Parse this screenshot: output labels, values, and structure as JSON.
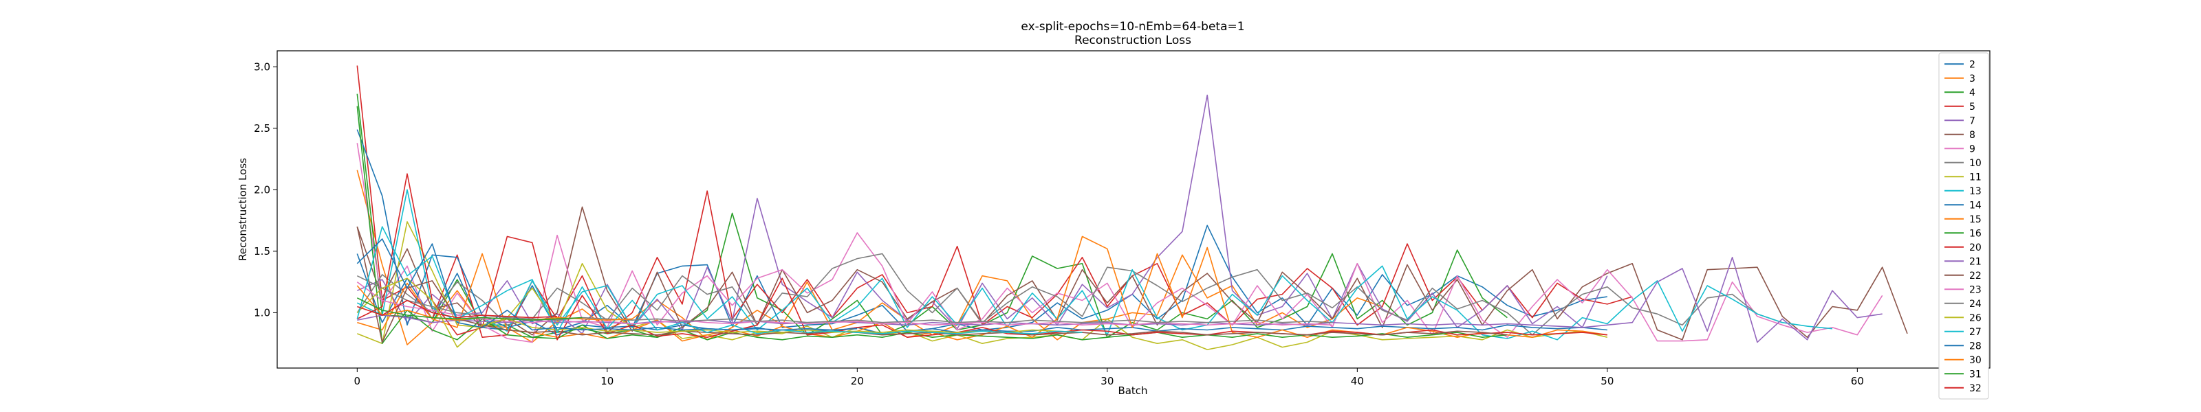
{
  "chart_data": {
    "type": "line",
    "title": "ex-split-epochs=10-nEmb=64-beta=1",
    "subtitle": "Reconstruction Loss",
    "xlabel": "Batch",
    "ylabel": "Reconstruction Loss",
    "xlim": [
      -3.2,
      65.3
    ],
    "ylim": [
      0.55,
      3.13
    ],
    "xticks": [
      0,
      10,
      20,
      30,
      40,
      50,
      60
    ],
    "yticks": [
      1.0,
      1.5,
      2.0,
      2.5,
      3.0
    ],
    "ytick_labels": [
      "1.0",
      "1.5",
      "2.0",
      "2.5",
      "3.0"
    ],
    "grid": false,
    "legend_position": "right",
    "series": [
      {
        "name": "2",
        "color": "#1f77b4",
        "values": [
          1.48,
          0.92,
          1.28,
          0.95,
          1.32,
          0.88,
          0.86,
          1.22,
          0.86,
          0.92,
          1.06,
          0.88,
          1.32,
          1.38,
          1.39,
          0.89,
          1.3,
          0.88,
          0.9,
          0.91,
          0.98,
          1.06,
          0.85,
          0.87,
          0.91,
          0.86,
          0.88,
          0.92,
          1.08,
          0.95,
          1.02,
          1.15,
          0.95,
          1.1,
          1.71,
          1.29,
          1.0,
          1.12,
          0.9,
          1.2,
          0.98,
          1.31,
          1.06,
          1.15,
          1.3,
          1.21,
          1.06,
          0.97,
          1.02,
          1.1,
          1.13
        ]
      },
      {
        "name": "3",
        "color": "#ff7f0e",
        "values": [
          2.16,
          1.39,
          0.74,
          0.92,
          1.18,
          0.9,
          0.88,
          0.76,
          0.93,
          1.03,
          0.87,
          0.95,
          1.1,
          0.96,
          0.78,
          0.88,
          1.02,
          0.9,
          1.25,
          0.86,
          0.92,
          1.08,
          0.94,
          0.82,
          0.9,
          1.3,
          1.26,
          0.95,
          0.78,
          0.92,
          0.95,
          1.0,
          0.98,
          1.47,
          1.12,
          1.22,
          0.9,
          1.0,
          0.88,
          0.95,
          1.12,
          1.05
        ]
      },
      {
        "name": "4",
        "color": "#2ca02c",
        "values": [
          2.78,
          0.98,
          0.97,
          0.92,
          1.27,
          0.9,
          0.9,
          0.8,
          0.84,
          0.87,
          0.83,
          0.86,
          0.8,
          0.88,
          1.02,
          1.81,
          1.12,
          1.02,
          0.82,
          0.95,
          1.1,
          0.82,
          0.9,
          1.05,
          0.86,
          0.9,
          1.0,
          1.46,
          1.36,
          1.4,
          0.8,
          0.92,
          0.86,
          1.0,
          0.95,
          1.1,
          0.88,
          0.95,
          1.05,
          1.48,
          0.95,
          1.1,
          0.9,
          1.0,
          1.51,
          1.12,
          0.96
        ]
      },
      {
        "name": "5",
        "color": "#d62728",
        "values": [
          3.01,
          1.1,
          1.21,
          0.95,
          1.47,
          0.8,
          0.82,
          1.26,
          0.95,
          1.3,
          0.84,
          1.0,
          1.45,
          1.07,
          1.99,
          0.95,
          1.23,
          1.0,
          1.27,
          0.96,
          1.2,
          1.31,
          1.0,
          1.05,
          1.54,
          0.9,
          1.05,
          0.96,
          1.15,
          1.45,
          1.05,
          1.3,
          1.4,
          0.98,
          1.08,
          0.9,
          1.11,
          1.15,
          1.36,
          1.2,
          0.9,
          1.05,
          1.56,
          1.1,
          1.29,
          1.02,
          1.22,
          0.96,
          1.24,
          1.11,
          1.07,
          1.13
        ]
      },
      {
        "name": "7",
        "color": "#9467bd",
        "values": [
          1.18,
          1.27,
          0.92,
          1.15,
          0.98,
          1.0,
          1.26,
          0.91,
          0.99,
          0.83,
          1.23,
          0.88,
          1.11,
          0.86,
          1.37,
          0.93,
          1.93,
          1.23,
          1.09,
          0.96,
          1.33,
          1.1,
          0.94,
          1.09,
          0.87,
          1.24,
          0.95,
          1.12,
          0.9,
          1.23,
          1.04,
          1.15,
          1.45,
          1.66,
          2.77,
          1.18,
          0.98,
          1.05,
          1.32,
          0.95,
          1.4,
          1.03,
          0.93,
          1.16,
          0.88,
          1.02,
          1.22,
          0.91,
          1.05,
          0.88,
          1.3
        ]
      },
      {
        "name": "8",
        "color": "#8c564b",
        "values": [
          1.7,
          1.12,
          1.52,
          1.03,
          1.08,
          0.88,
          0.95,
          0.82,
          1.0,
          1.86,
          1.18,
          0.85,
          1.33,
          0.88,
          1.04,
          1.33,
          0.9,
          1.35,
          1.0,
          1.1,
          1.35,
          1.25,
          0.95,
          1.09,
          1.2,
          0.91,
          1.14,
          1.26,
          0.94,
          1.35,
          1.08,
          1.3,
          0.9,
          1.17,
          1.32,
          1.09,
          0.92,
          1.33,
          1.15,
          0.95,
          1.28,
          0.88,
          1.39,
          1.02,
          1.27,
          0.9,
          1.18,
          1.35,
          0.95,
          1.21,
          1.32,
          1.4,
          0.86,
          0.78,
          1.35,
          1.36,
          1.37,
          0.97,
          0.8,
          1.05,
          1.02,
          1.37,
          0.83
        ]
      },
      {
        "name": "9",
        "color": "#e377c2",
        "values": [
          2.38,
          1.08,
          1.38,
          0.85,
          1.16,
          0.9,
          0.79,
          0.76,
          1.63,
          0.94,
          0.88,
          1.34,
          0.9,
          1.16,
          1.3,
          1.06,
          1.28,
          1.35,
          1.16,
          1.27,
          1.65,
          1.38,
          0.91,
          1.17,
          0.86,
          0.95,
          1.2,
          1.0,
          1.16,
          1.1,
          1.24,
          0.88,
          1.08,
          1.2,
          1.06,
          0.9,
          1.22,
          0.95,
          1.15,
          0.88,
          1.4,
          0.92,
          1.1,
          0.82,
          1.3,
          0.94,
          0.8,
          1.05,
          1.27,
          1.08,
          1.35,
          1.12,
          0.77,
          0.77,
          0.78,
          1.25,
          0.97,
          0.9,
          0.84,
          0.88,
          0.82,
          1.14
        ]
      },
      {
        "name": "10",
        "color": "#7f7f7f",
        "values": [
          1.0,
          1.31,
          1.15,
          1.0,
          1.25,
          1.1,
          0.9,
          0.95,
          1.2,
          1.08,
          0.94,
          1.2,
          1.02,
          1.3,
          1.15,
          1.21,
          0.9,
          1.16,
          1.13,
          1.36,
          1.44,
          1.48,
          1.18,
          1.0,
          1.2,
          0.92,
          1.08,
          1.21,
          1.13,
          0.97,
          1.37,
          1.34,
          1.22,
          1.09,
          1.2,
          1.29,
          1.35,
          1.1,
          1.16,
          1.04,
          1.21,
          1.02,
          0.94,
          1.2,
          1.03,
          1.1,
          1.0,
          0.82,
          1.0,
          1.15,
          1.21,
          1.04,
          0.99,
          0.9,
          1.12,
          1.15,
          0.99,
          0.92
        ]
      },
      {
        "name": "11",
        "color": "#bcbd22",
        "values": [
          0.83,
          0.75,
          1.74,
          1.34,
          0.9,
          0.88,
          0.96,
          1.2,
          0.9,
          1.4,
          1.02,
          0.88,
          0.94,
          0.79,
          0.82,
          0.78,
          0.84,
          0.83,
          0.89,
          0.8,
          0.88,
          0.82,
          0.85,
          0.77,
          0.82,
          0.75,
          0.79,
          0.8,
          0.82,
          0.78,
          0.95,
          0.8,
          0.75,
          0.78,
          0.7,
          0.74,
          0.8,
          0.72,
          0.76,
          0.85,
          0.82,
          0.78,
          0.79,
          0.8,
          0.81,
          0.78,
          0.86,
          0.8,
          0.83,
          0.85,
          0.8
        ]
      },
      {
        "name": "13",
        "color": "#17becf",
        "values": [
          1.08,
          0.98,
          2.0,
          1.04,
          0.93,
          0.96,
          0.85,
          1.26,
          0.9,
          1.17,
          1.22,
          0.88,
          1.15,
          1.22,
          0.95,
          1.13,
          0.86,
          1.02,
          1.2,
          0.92,
          1.05,
          1.28,
          0.88,
          1.13,
          0.9,
          1.2,
          0.88,
          1.16,
          0.95,
          1.18,
          0.82,
          1.35,
          0.96,
          0.86,
          0.9,
          1.15,
          0.98,
          1.3,
          1.1,
          0.92,
          1.2,
          1.38,
          0.95,
          1.13,
          1.02,
          0.82,
          0.79,
          0.85,
          0.78,
          0.96,
          0.91,
          1.1,
          1.26,
          0.85,
          1.22,
          1.11,
          0.99,
          0.92,
          0.89,
          0.87
        ]
      },
      {
        "name": "14",
        "color": "#1f77b4",
        "values": [
          2.49,
          1.95,
          0.9,
          1.47,
          1.45,
          0.98,
          0.88,
          0.93,
          0.82,
          0.9,
          0.88,
          0.89,
          0.86,
          0.9,
          0.87,
          0.86,
          0.88,
          0.84,
          0.86,
          0.85,
          0.88,
          0.83,
          0.85,
          0.87,
          0.84,
          0.86,
          0.85,
          0.85,
          0.88,
          0.86,
          0.87,
          0.88,
          0.85,
          0.87,
          0.86,
          0.88,
          0.87,
          0.86,
          0.89,
          0.88,
          0.87,
          0.89,
          0.88,
          0.87,
          0.88,
          0.86,
          0.9,
          0.88,
          0.87,
          0.88,
          0.86
        ]
      },
      {
        "name": "15",
        "color": "#ff7f0e",
        "values": [
          0.92,
          0.86,
          1.24,
          0.95,
          0.88,
          1.48,
          0.86,
          0.84,
          0.8,
          0.83,
          0.79,
          0.86,
          0.94,
          0.77,
          0.82,
          0.86,
          0.81,
          0.89,
          0.83,
          0.8,
          0.85,
          0.92,
          0.8,
          0.84,
          0.78,
          0.82,
          0.89,
          0.8,
          0.95,
          1.62,
          1.52,
          0.88,
          1.48,
          0.96,
          1.53,
          0.84,
          0.8,
          0.86,
          0.8,
          0.86,
          0.84,
          0.82,
          0.88,
          0.85,
          0.8,
          0.84,
          0.82,
          0.8,
          0.86,
          0.85,
          0.82
        ]
      },
      {
        "name": "16",
        "color": "#2ca02c",
        "values": [
          2.68,
          0.75,
          1.02,
          0.86,
          0.78,
          0.95,
          0.82,
          0.8,
          0.79,
          0.9,
          0.79,
          0.82,
          0.8,
          0.86,
          0.78,
          0.84,
          0.8,
          0.78,
          0.81,
          0.8,
          0.82,
          0.8,
          0.84,
          0.8,
          0.82,
          0.81,
          0.8,
          0.79,
          0.82,
          0.78,
          0.8,
          0.82,
          0.84,
          0.8,
          0.82,
          0.8,
          0.83,
          0.8,
          0.82,
          0.8,
          0.81,
          0.83,
          0.8,
          0.82,
          0.84,
          0.8,
          0.82
        ]
      },
      {
        "name": "20",
        "color": "#d62728",
        "values": [
          0.95,
          1.05,
          2.13,
          1.1,
          0.82,
          0.88,
          1.62,
          1.57,
          0.78,
          1.14,
          0.83,
          0.9,
          0.81,
          0.83,
          0.8,
          0.85,
          0.9,
          1.28,
          0.82,
          0.84,
          0.88,
          0.9,
          0.8,
          0.82,
          0.84,
          0.88,
          0.83,
          0.82,
          0.84,
          0.86,
          0.85,
          0.82,
          0.84,
          0.83,
          0.82,
          0.85,
          0.84,
          0.83,
          0.82,
          0.85,
          0.84,
          0.82,
          0.84,
          0.86,
          0.82,
          0.83,
          0.84,
          0.82,
          0.83,
          0.84,
          0.82
        ]
      },
      {
        "name": "21",
        "color": "#9467bd",
        "values": [
          0.94,
          0.98,
          0.96,
          0.92,
          0.94,
          0.93,
          0.92,
          0.94,
          0.92,
          0.93,
          0.92,
          0.91,
          0.93,
          0.92,
          0.94,
          0.92,
          0.93,
          0.91,
          0.92,
          0.93,
          0.92,
          0.91,
          0.9,
          0.92,
          0.91,
          0.9,
          0.92,
          0.91,
          0.9,
          0.91,
          0.92,
          0.9,
          0.91,
          0.9,
          0.92,
          0.91,
          0.9,
          0.91,
          0.9,
          0.92,
          0.91,
          0.9,
          0.91,
          0.9,
          0.91,
          0.9,
          0.91,
          0.9,
          0.89,
          0.88,
          0.9,
          0.92,
          1.25,
          1.36,
          0.85,
          1.45,
          0.76,
          0.95,
          0.78,
          1.18,
          0.96,
          0.99
        ]
      },
      {
        "name": "22",
        "color": "#8c564b",
        "values": [
          1.7,
          0.76,
          1.2,
          1.26,
          0.95,
          0.9,
          0.86,
          0.84,
          0.85,
          0.82,
          0.84,
          0.83,
          0.82,
          0.85,
          0.84,
          0.83,
          0.82,
          0.84,
          0.83,
          0.85,
          0.84,
          0.82,
          0.83,
          0.84,
          0.82,
          0.83,
          0.84,
          0.82,
          0.83,
          0.84,
          0.82,
          0.83,
          0.85,
          0.84,
          0.82,
          0.83,
          0.84,
          0.83,
          0.82,
          0.84,
          0.83,
          0.82,
          0.84,
          0.83,
          0.85,
          0.84,
          0.82
        ]
      },
      {
        "name": "23",
        "color": "#e377c2",
        "values": [
          1.25,
          1.1,
          1.05,
          1.02,
          0.98,
          0.95,
          0.93,
          0.92,
          0.94,
          0.92,
          0.93,
          0.91,
          0.92,
          0.94,
          0.92,
          0.91,
          0.93,
          0.92,
          0.91,
          0.92,
          0.93,
          0.91,
          0.92,
          0.9,
          0.91,
          0.92,
          0.9,
          0.91,
          0.92,
          0.9,
          0.91,
          0.9,
          0.92,
          0.91,
          0.9,
          0.91,
          0.92,
          0.9,
          0.91,
          0.9
        ]
      },
      {
        "name": "24",
        "color": "#7f7f7f",
        "values": [
          1.3,
          1.2,
          1.1,
          1.05,
          1.0,
          0.98,
          0.96,
          0.95,
          0.94,
          0.96,
          0.95,
          0.94,
          0.95,
          0.93,
          0.94,
          0.95,
          0.93,
          0.94,
          0.92,
          0.93,
          0.94,
          0.92,
          0.93,
          0.94,
          0.92,
          0.93,
          0.92,
          0.94,
          0.93,
          0.92,
          0.93,
          0.94,
          0.92,
          0.93,
          0.92,
          0.93,
          0.94,
          0.92,
          0.93,
          0.92
        ]
      },
      {
        "name": "26",
        "color": "#bcbd22",
        "values": [
          1.0,
          1.2,
          1.28,
          1.1,
          0.72,
          0.9,
          0.95,
          0.88,
          0.86,
          0.88,
          0.85,
          0.86,
          0.84,
          0.85,
          0.86,
          0.84,
          0.85,
          0.84,
          0.86,
          0.84,
          0.85,
          0.84,
          0.86,
          0.85,
          0.84,
          0.85,
          0.84,
          0.86,
          0.85,
          0.84
        ]
      },
      {
        "name": "27",
        "color": "#17becf",
        "values": [
          0.95,
          1.7,
          1.3,
          1.46,
          0.95,
          1.06,
          1.18,
          1.27,
          0.84,
          1.21,
          0.87,
          1.1,
          0.86,
          0.92,
          0.84,
          0.9,
          0.83,
          0.86,
          0.84,
          0.85,
          0.84,
          0.83,
          0.85,
          0.84,
          0.83,
          0.85,
          0.84,
          0.83,
          0.85,
          0.84
        ]
      },
      {
        "name": "28",
        "color": "#1f77b4",
        "values": [
          1.4,
          1.6,
          1.2,
          1.56,
          0.92,
          0.88,
          1.02,
          0.86,
          0.88,
          0.86,
          0.87,
          0.86,
          0.88,
          0.86,
          0.87,
          0.86,
          0.87,
          0.86,
          0.87,
          0.86,
          0.87
        ]
      },
      {
        "name": "30",
        "color": "#ff7f0e",
        "values": [
          1.22,
          0.98,
          1.02,
          0.96,
          0.94,
          0.96,
          0.95,
          0.94,
          0.96,
          0.95,
          0.94,
          0.95
        ]
      },
      {
        "name": "31",
        "color": "#2ca02c",
        "values": [
          1.12,
          1.02,
          0.98,
          0.96,
          0.95,
          0.96,
          0.95,
          0.94,
          0.95,
          0.96
        ]
      },
      {
        "name": "32",
        "color": "#d62728",
        "values": [
          1.05,
          0.98,
          1.1,
          1.0,
          0.96,
          0.98,
          0.97,
          0.96,
          0.97
        ]
      }
    ]
  }
}
